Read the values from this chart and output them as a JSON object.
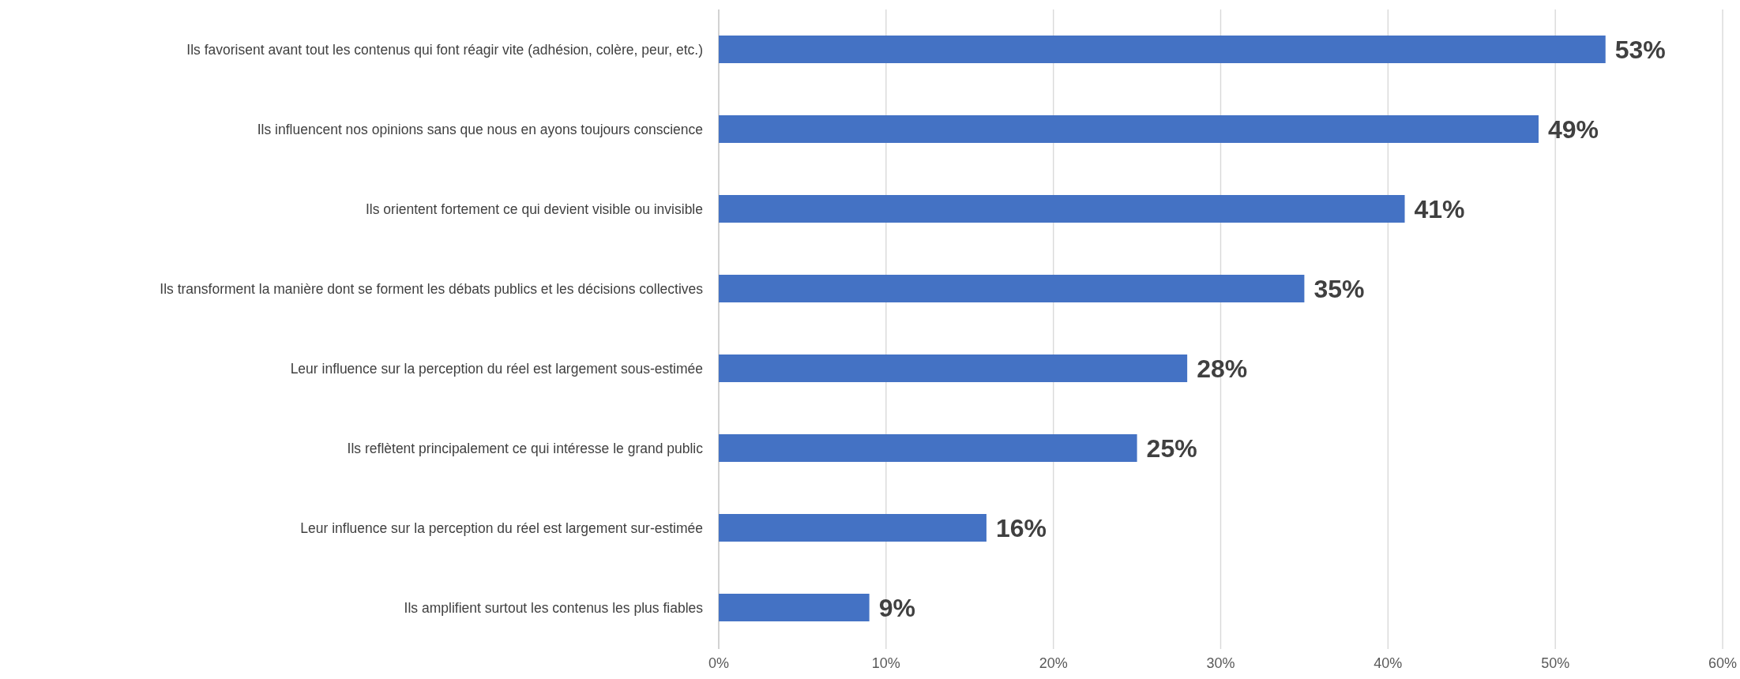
{
  "chart_data": {
    "type": "bar",
    "orientation": "horizontal",
    "categories": [
      "Ils favorisent avant tout les contenus qui font réagir vite (adhésion, colère, peur, etc.)",
      "Ils influencent nos opinions sans que nous en ayons toujours conscience",
      "Ils orientent fortement ce qui devient visible ou invisible",
      "Ils transforment la manière dont se forment les débats publics et les décisions collectives",
      "Leur influence sur la perception du réel est largement sous-estimée",
      "Ils reflètent principalement ce qui intéresse le grand public",
      "Leur influence sur la perception du réel est largement sur-estimée",
      "Ils amplifient surtout les contenus les plus fiables"
    ],
    "values": [
      53,
      49,
      41,
      35,
      28,
      25,
      16,
      9
    ],
    "value_labels": [
      "53%",
      "49%",
      "41%",
      "35%",
      "28%",
      "25%",
      "16%",
      "9%"
    ],
    "color": "#4472c4",
    "xlim": [
      0,
      60
    ],
    "xticks": [
      {
        "value": 0,
        "label": "0%"
      },
      {
        "value": 10,
        "label": "10%"
      },
      {
        "value": 20,
        "label": "20%"
      },
      {
        "value": 30,
        "label": "30%"
      },
      {
        "value": 40,
        "label": "40%"
      },
      {
        "value": 50,
        "label": "50%"
      },
      {
        "value": 60,
        "label": "60%"
      }
    ],
    "grid": "x"
  }
}
